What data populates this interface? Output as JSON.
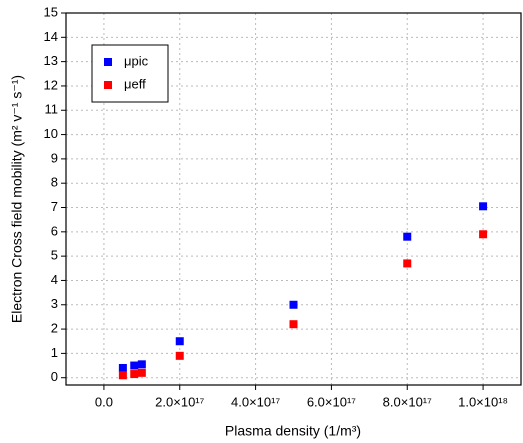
{
  "chart_data": {
    "type": "scatter",
    "x_label": "Plasma density (1/m³)",
    "y_label": "Electron Cross field mobility (m² v⁻¹ s⁻¹)",
    "xlim": [
      -1e+17,
      1.1e+18
    ],
    "ylim": [
      -0.3,
      15
    ],
    "xticks": [
      {
        "value": 0,
        "label": "0.0"
      },
      {
        "value": 2e+17,
        "label": "2.0×10¹⁷"
      },
      {
        "value": 4e+17,
        "label": "4.0×10¹⁷"
      },
      {
        "value": 6e+17,
        "label": "6.0×10¹⁷"
      },
      {
        "value": 8e+17,
        "label": "8.0×10¹⁷"
      },
      {
        "value": 1e+18,
        "label": "1.0×10¹⁸"
      }
    ],
    "yticks": [
      0,
      1,
      2,
      3,
      4,
      5,
      6,
      7,
      8,
      9,
      10,
      11,
      12,
      13,
      14,
      15
    ],
    "grid": true,
    "legend": "upper left",
    "series": [
      {
        "name": "μpic",
        "color": "#0000ff",
        "x": [
          5e+16,
          8e+16,
          1e+17,
          2e+17,
          5e+17,
          8e+17,
          1e+18
        ],
        "values": [
          0.4,
          0.5,
          0.55,
          1.5,
          3.0,
          5.8,
          7.05
        ]
      },
      {
        "name": "μeff",
        "color": "#ff0000",
        "x": [
          5e+16,
          8e+16,
          1e+17,
          2e+17,
          5e+17,
          8e+17,
          1e+18
        ],
        "values": [
          0.1,
          0.15,
          0.2,
          0.9,
          2.2,
          4.7,
          5.9
        ]
      }
    ]
  }
}
